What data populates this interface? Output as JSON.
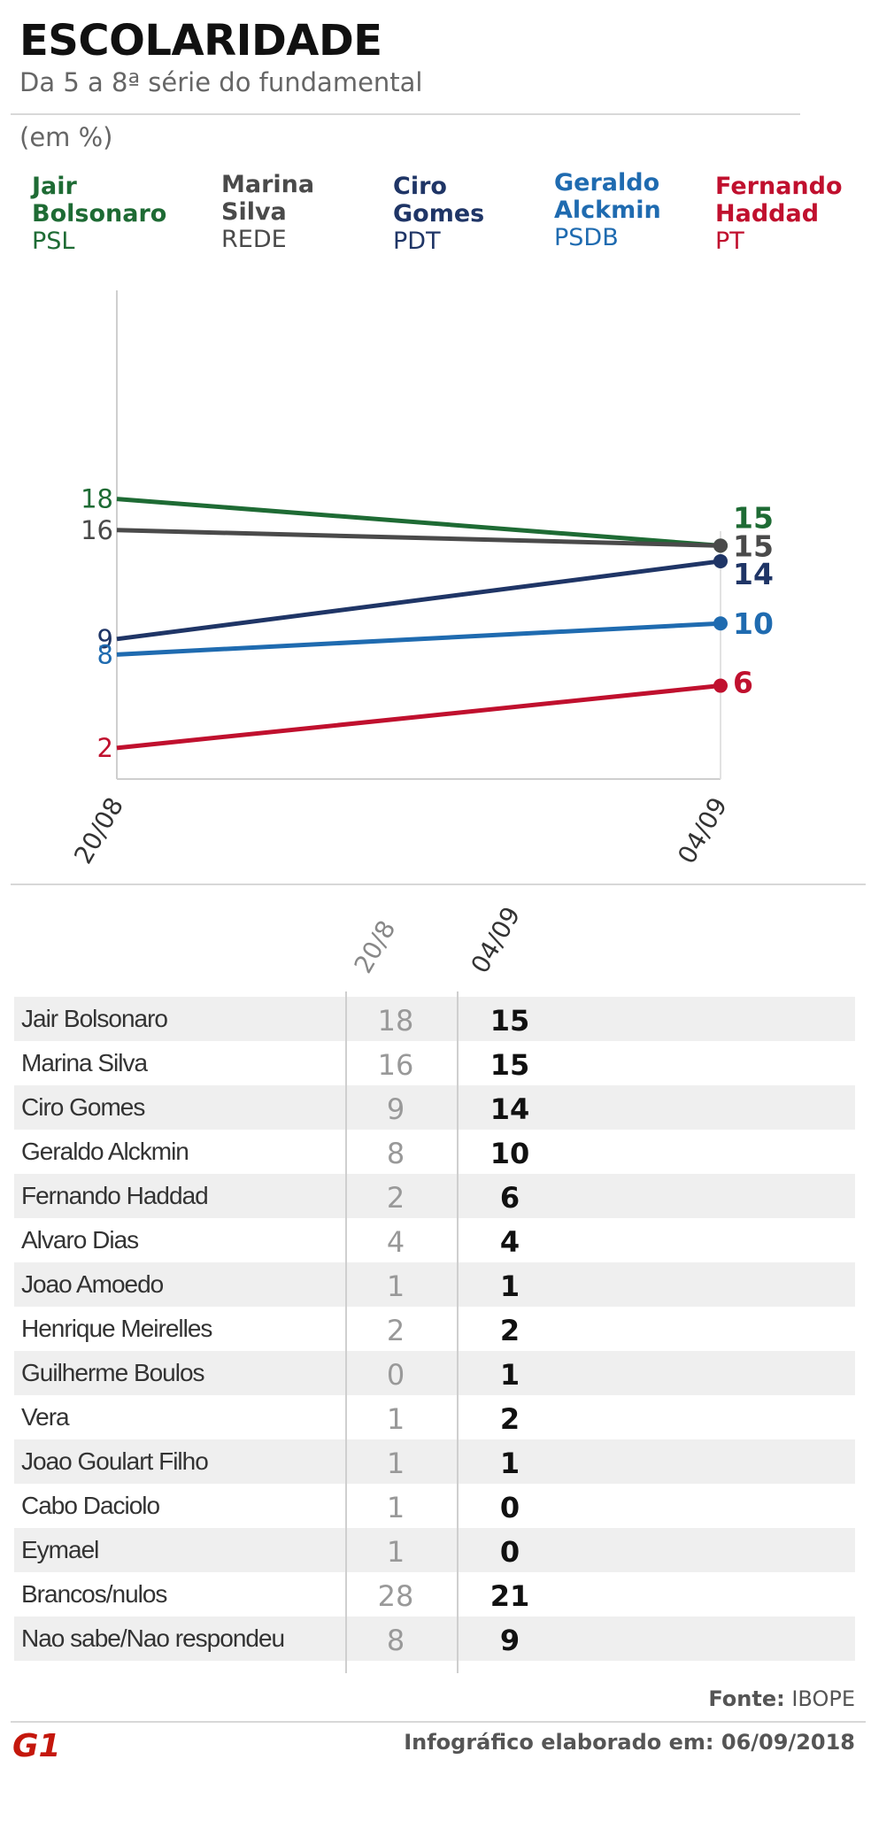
{
  "header": {
    "title": "ESCOLARIDADE",
    "subtitle": "Da 5 a 8ª série do fundamental",
    "unit": "(em %)"
  },
  "legend": [
    {
      "name": "Jair\nBolsonaro",
      "party": "PSL",
      "color": "#1e6b34"
    },
    {
      "name": "Marina\nSilva",
      "party": "REDE",
      "color": "#4a4a4a"
    },
    {
      "name": "Ciro\nGomes",
      "party": "PDT",
      "color": "#1f3566"
    },
    {
      "name": "Geraldo\nAlckmin",
      "party": "PSDB",
      "color": "#1f6bb0"
    },
    {
      "name": "Fernando\nHaddad",
      "party": "PT",
      "color": "#c0102e"
    }
  ],
  "chart_data": {
    "type": "line",
    "x": [
      "20/08",
      "04/09"
    ],
    "ylim": [
      0,
      33
    ],
    "grid": false,
    "series": [
      {
        "name": "Jair Bolsonaro",
        "values": [
          18,
          15
        ],
        "color": "#1e6b34"
      },
      {
        "name": "Marina Silva",
        "values": [
          16,
          15
        ],
        "color": "#4a4a4a"
      },
      {
        "name": "Ciro Gomes",
        "values": [
          9,
          14
        ],
        "color": "#1f3566"
      },
      {
        "name": "Geraldo Alckmin",
        "values": [
          8,
          10
        ],
        "color": "#1f6bb0"
      },
      {
        "name": "Fernando Haddad",
        "values": [
          2,
          6
        ],
        "color": "#c0102e"
      }
    ]
  },
  "table": {
    "headers": [
      "20/8",
      "04/09"
    ],
    "rows": [
      {
        "name": "Jair Bolsonaro",
        "v1": "18",
        "v2": "15"
      },
      {
        "name": "Marina Silva",
        "v1": "16",
        "v2": "15"
      },
      {
        "name": "Ciro Gomes",
        "v1": "9",
        "v2": "14"
      },
      {
        "name": "Geraldo Alckmin",
        "v1": "8",
        "v2": "10"
      },
      {
        "name": "Fernando Haddad",
        "v1": "2",
        "v2": "6"
      },
      {
        "name": "Alvaro Dias",
        "v1": "4",
        "v2": "4"
      },
      {
        "name": "Joao Amoedo",
        "v1": "1",
        "v2": "1"
      },
      {
        "name": "Henrique Meirelles",
        "v1": "2",
        "v2": "2"
      },
      {
        "name": "Guilherme Boulos",
        "v1": "0",
        "v2": "1"
      },
      {
        "name": "Vera",
        "v1": "1",
        "v2": "2"
      },
      {
        "name": "Joao Goulart Filho",
        "v1": "1",
        "v2": "1"
      },
      {
        "name": "Cabo Daciolo",
        "v1": "1",
        "v2": "0"
      },
      {
        "name": "Eymael",
        "v1": "1",
        "v2": "0"
      },
      {
        "name": "Brancos/nulos",
        "v1": "28",
        "v2": "21"
      },
      {
        "name": "Nao sabe/Nao respondeu",
        "v1": "8",
        "v2": "9"
      }
    ]
  },
  "footer": {
    "source_label": "Fonte:",
    "source_value": "IBOPE",
    "note": "Infográfico elaborado em: 06/09/2018",
    "logo_text": "G1"
  }
}
